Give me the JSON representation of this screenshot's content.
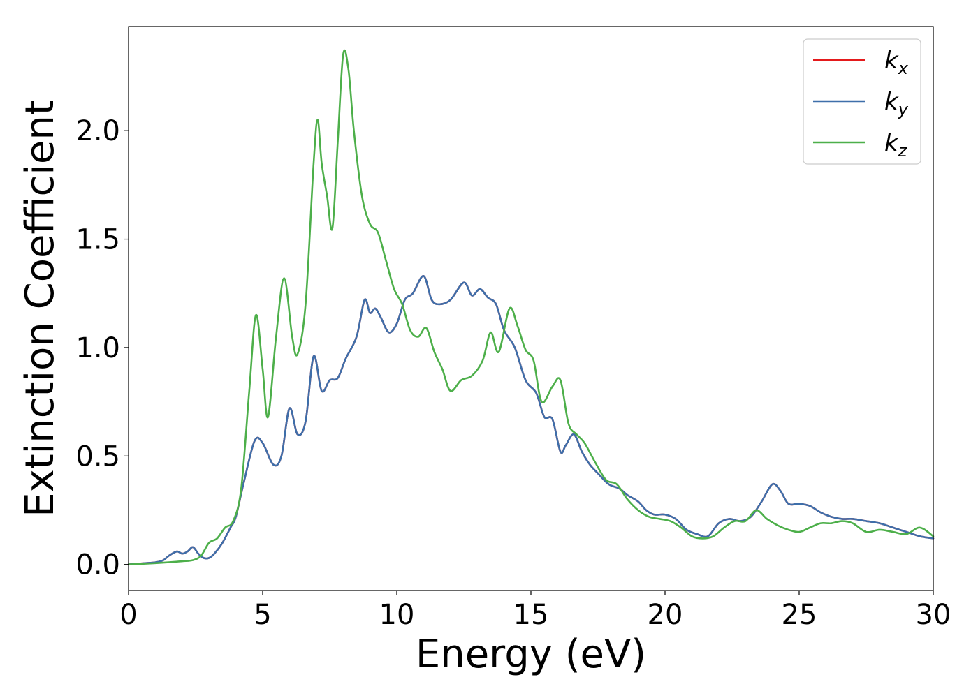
{
  "chart_data": {
    "type": "line",
    "title": "",
    "xlabel": "Energy (eV)",
    "ylabel": "Extinction Coefficient",
    "xlim": [
      0,
      30
    ],
    "ylim": [
      -0.12,
      2.48
    ],
    "xticks": [
      0,
      5,
      10,
      15,
      20,
      25,
      30
    ],
    "xtick_labels": [
      "0",
      "5",
      "10",
      "15",
      "20",
      "25",
      "30"
    ],
    "yticks": [
      0.0,
      0.5,
      1.0,
      1.5,
      2.0
    ],
    "ytick_labels": [
      "0.0",
      "0.5",
      "1.0",
      "1.5",
      "2.0"
    ],
    "grid": false,
    "legend_position": "top-right",
    "series": [
      {
        "name": "k",
        "subscript": "x",
        "color": "#e41a1c",
        "x": [
          0,
          0.5,
          1.0,
          1.3,
          1.5,
          1.8,
          2.0,
          2.2,
          2.4,
          2.6,
          2.8,
          3.0,
          3.2,
          3.5,
          3.8,
          4.0,
          4.3,
          4.7,
          5.0,
          5.4,
          5.7,
          6.0,
          6.3,
          6.6,
          6.9,
          7.2,
          7.5,
          7.8,
          8.1,
          8.5,
          8.8,
          9.0,
          9.2,
          9.4,
          9.7,
          10.0,
          10.3,
          10.6,
          11.0,
          11.3,
          11.6,
          12.0,
          12.5,
          12.8,
          13.1,
          13.4,
          13.7,
          14.0,
          14.4,
          14.8,
          15.2,
          15.5,
          15.8,
          16.1,
          16.3,
          16.6,
          16.9,
          17.2,
          17.5,
          17.9,
          18.3,
          18.6,
          19.0,
          19.3,
          19.6,
          20.0,
          20.4,
          20.8,
          21.2,
          21.6,
          22.0,
          22.4,
          22.8,
          23.2,
          23.6,
          24.0,
          24.3,
          24.6,
          25.0,
          25.4,
          25.8,
          26.2,
          26.6,
          27.0,
          27.5,
          28.0,
          28.5,
          29.0,
          29.5,
          30.0
        ],
        "y": [
          0.0,
          0.005,
          0.01,
          0.02,
          0.04,
          0.06,
          0.05,
          0.06,
          0.08,
          0.05,
          0.03,
          0.03,
          0.05,
          0.1,
          0.17,
          0.22,
          0.38,
          0.57,
          0.56,
          0.46,
          0.5,
          0.72,
          0.6,
          0.66,
          0.96,
          0.8,
          0.85,
          0.86,
          0.95,
          1.05,
          1.22,
          1.16,
          1.18,
          1.14,
          1.07,
          1.11,
          1.22,
          1.25,
          1.33,
          1.22,
          1.2,
          1.22,
          1.3,
          1.24,
          1.27,
          1.23,
          1.2,
          1.08,
          1.0,
          0.85,
          0.79,
          0.68,
          0.67,
          0.52,
          0.55,
          0.6,
          0.52,
          0.46,
          0.42,
          0.37,
          0.35,
          0.32,
          0.29,
          0.25,
          0.23,
          0.23,
          0.21,
          0.16,
          0.14,
          0.13,
          0.19,
          0.21,
          0.2,
          0.22,
          0.29,
          0.37,
          0.34,
          0.28,
          0.28,
          0.27,
          0.24,
          0.22,
          0.21,
          0.21,
          0.2,
          0.19,
          0.17,
          0.15,
          0.13,
          0.12
        ]
      },
      {
        "name": "k",
        "subscript": "y",
        "color": "#3e6faa",
        "x": [
          0,
          0.5,
          1.0,
          1.3,
          1.5,
          1.8,
          2.0,
          2.2,
          2.4,
          2.6,
          2.8,
          3.0,
          3.2,
          3.5,
          3.8,
          4.0,
          4.3,
          4.7,
          5.0,
          5.4,
          5.7,
          6.0,
          6.3,
          6.6,
          6.9,
          7.2,
          7.5,
          7.8,
          8.1,
          8.5,
          8.8,
          9.0,
          9.2,
          9.4,
          9.7,
          10.0,
          10.3,
          10.6,
          11.0,
          11.3,
          11.6,
          12.0,
          12.5,
          12.8,
          13.1,
          13.4,
          13.7,
          14.0,
          14.4,
          14.8,
          15.2,
          15.5,
          15.8,
          16.1,
          16.3,
          16.6,
          16.9,
          17.2,
          17.5,
          17.9,
          18.3,
          18.6,
          19.0,
          19.3,
          19.6,
          20.0,
          20.4,
          20.8,
          21.2,
          21.6,
          22.0,
          22.4,
          22.8,
          23.2,
          23.6,
          24.0,
          24.3,
          24.6,
          25.0,
          25.4,
          25.8,
          26.2,
          26.6,
          27.0,
          27.5,
          28.0,
          28.5,
          29.0,
          29.5,
          30.0
        ],
        "y": [
          0.0,
          0.005,
          0.01,
          0.02,
          0.04,
          0.06,
          0.05,
          0.06,
          0.08,
          0.05,
          0.03,
          0.03,
          0.05,
          0.1,
          0.17,
          0.22,
          0.38,
          0.57,
          0.56,
          0.46,
          0.5,
          0.72,
          0.6,
          0.66,
          0.96,
          0.8,
          0.85,
          0.86,
          0.95,
          1.05,
          1.22,
          1.16,
          1.18,
          1.14,
          1.07,
          1.11,
          1.22,
          1.25,
          1.33,
          1.22,
          1.2,
          1.22,
          1.3,
          1.24,
          1.27,
          1.23,
          1.2,
          1.08,
          1.0,
          0.85,
          0.79,
          0.68,
          0.67,
          0.52,
          0.55,
          0.6,
          0.52,
          0.46,
          0.42,
          0.37,
          0.35,
          0.32,
          0.29,
          0.25,
          0.23,
          0.23,
          0.21,
          0.16,
          0.14,
          0.13,
          0.19,
          0.21,
          0.2,
          0.22,
          0.29,
          0.37,
          0.34,
          0.28,
          0.28,
          0.27,
          0.24,
          0.22,
          0.21,
          0.21,
          0.2,
          0.19,
          0.17,
          0.15,
          0.13,
          0.12
        ]
      },
      {
        "name": "k",
        "subscript": "z",
        "color": "#4daf4a",
        "x": [
          0,
          0.5,
          1.0,
          1.5,
          2.0,
          2.4,
          2.7,
          3.0,
          3.3,
          3.6,
          3.9,
          4.2,
          4.5,
          4.75,
          5.0,
          5.2,
          5.5,
          5.8,
          6.1,
          6.3,
          6.6,
          6.9,
          7.05,
          7.2,
          7.4,
          7.6,
          7.8,
          8.0,
          8.2,
          8.4,
          8.7,
          9.0,
          9.3,
          9.6,
          9.9,
          10.2,
          10.5,
          10.8,
          11.1,
          11.4,
          11.7,
          12.0,
          12.4,
          12.8,
          13.2,
          13.5,
          13.8,
          14.2,
          14.5,
          14.8,
          15.1,
          15.4,
          15.8,
          16.1,
          16.4,
          16.7,
          17.0,
          17.4,
          17.8,
          18.2,
          18.6,
          19.0,
          19.4,
          19.8,
          20.2,
          20.6,
          21.0,
          21.4,
          21.8,
          22.2,
          22.6,
          23.0,
          23.4,
          23.8,
          24.2,
          24.6,
          25.0,
          25.4,
          25.8,
          26.2,
          26.6,
          27.0,
          27.5,
          28.0,
          28.5,
          29.0,
          29.5,
          30.0
        ],
        "y": [
          0.0,
          0.003,
          0.006,
          0.01,
          0.015,
          0.02,
          0.04,
          0.1,
          0.12,
          0.17,
          0.2,
          0.35,
          0.8,
          1.15,
          0.9,
          0.68,
          1.05,
          1.32,
          1.05,
          0.97,
          1.2,
          1.85,
          2.05,
          1.85,
          1.7,
          1.55,
          1.95,
          2.35,
          2.28,
          2.0,
          1.7,
          1.57,
          1.53,
          1.4,
          1.27,
          1.2,
          1.08,
          1.05,
          1.09,
          0.98,
          0.9,
          0.8,
          0.85,
          0.87,
          0.94,
          1.07,
          0.98,
          1.18,
          1.1,
          0.99,
          0.94,
          0.75,
          0.82,
          0.85,
          0.65,
          0.6,
          0.56,
          0.47,
          0.39,
          0.37,
          0.3,
          0.25,
          0.22,
          0.21,
          0.2,
          0.17,
          0.13,
          0.12,
          0.13,
          0.17,
          0.2,
          0.2,
          0.25,
          0.21,
          0.18,
          0.16,
          0.15,
          0.17,
          0.19,
          0.19,
          0.2,
          0.19,
          0.15,
          0.16,
          0.15,
          0.14,
          0.17,
          0.13
        ]
      }
    ]
  }
}
